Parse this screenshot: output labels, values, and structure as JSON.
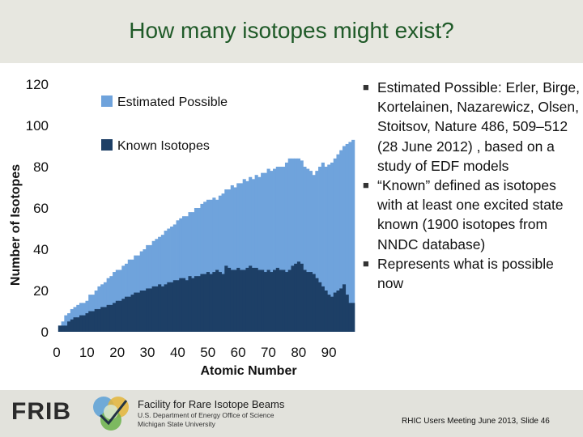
{
  "title": "How many isotopes might exist?",
  "bullets": [
    "Estimated Possible: Erler, Birge, Kortelainen, Nazarewicz, Olsen, Stoitsov, Nature 486, 509–512 (28 June 2012) , based on a study of EDF models",
    "“Known” defined as isotopes with at least one excited state known (1900 isotopes from NNDC database)",
    "Represents what is possible now"
  ],
  "footer": {
    "logo_text": "FRIB",
    "facility": "Facility for Rare Isotope Beams",
    "line2": "U.S. Department of Energy Office of Science",
    "line3": "Michigan State University",
    "slide_text": "RHIC Users Meeting June 2013, Slide 46"
  },
  "colors": {
    "estimated": "#6fa3dc",
    "known": "#1d3f66",
    "title": "#1f5a28"
  },
  "chart_data": {
    "type": "bar",
    "stacked_overlay": true,
    "xlabel": "Atomic Number",
    "ylabel": "Number of Isotopes",
    "xlim": [
      0,
      98
    ],
    "ylim": [
      0,
      120
    ],
    "xticks": [
      "0",
      "10",
      "20",
      "30",
      "40",
      "50",
      "60",
      "70",
      "80",
      "90"
    ],
    "yticks": [
      "0",
      "20",
      "40",
      "60",
      "80",
      "100",
      "120"
    ],
    "legend_position": "top-left",
    "grid": false,
    "x": [
      1,
      2,
      3,
      4,
      5,
      6,
      7,
      8,
      9,
      10,
      11,
      12,
      13,
      14,
      15,
      16,
      17,
      18,
      19,
      20,
      21,
      22,
      23,
      24,
      25,
      26,
      27,
      28,
      29,
      30,
      31,
      32,
      33,
      34,
      35,
      36,
      37,
      38,
      39,
      40,
      41,
      42,
      43,
      44,
      45,
      46,
      47,
      48,
      49,
      50,
      51,
      52,
      53,
      54,
      55,
      56,
      57,
      58,
      59,
      60,
      61,
      62,
      63,
      64,
      65,
      66,
      67,
      68,
      69,
      70,
      71,
      72,
      73,
      74,
      75,
      76,
      77,
      78,
      79,
      80,
      81,
      82,
      83,
      84,
      85,
      86,
      87,
      88,
      89,
      90,
      91,
      92,
      93,
      94,
      95,
      96,
      97,
      98
    ],
    "series": [
      {
        "name": "Estimated Possible",
        "values": [
          3,
          5,
          8,
          9,
          11,
          12,
          13,
          14,
          14,
          15,
          18,
          18,
          20,
          22,
          23,
          24,
          26,
          27,
          29,
          30,
          30,
          32,
          33,
          35,
          35,
          37,
          37,
          39,
          40,
          42,
          42,
          44,
          45,
          46,
          47,
          49,
          50,
          51,
          52,
          54,
          55,
          56,
          56,
          58,
          58,
          60,
          60,
          62,
          63,
          64,
          64,
          65,
          64,
          66,
          67,
          69,
          69,
          71,
          70,
          72,
          72,
          74,
          73,
          75,
          74,
          76,
          75,
          77,
          77,
          79,
          78,
          79,
          80,
          80,
          80,
          82,
          84,
          84,
          84,
          84,
          83,
          80,
          79,
          78,
          76,
          78,
          80,
          82,
          80,
          81,
          82,
          84,
          86,
          88,
          90,
          91,
          92,
          93
        ]
      },
      {
        "name": "Known Isotopes",
        "values": [
          3,
          3,
          3,
          5,
          6,
          7,
          7,
          8,
          8,
          9,
          10,
          10,
          11,
          11,
          12,
          12,
          13,
          13,
          14,
          15,
          15,
          16,
          17,
          17,
          18,
          19,
          19,
          20,
          20,
          21,
          21,
          22,
          22,
          23,
          22,
          23,
          24,
          24,
          25,
          25,
          26,
          26,
          25,
          27,
          26,
          27,
          27,
          28,
          28,
          29,
          28,
          29,
          30,
          29,
          28,
          32,
          31,
          30,
          30,
          31,
          30,
          30,
          31,
          32,
          31,
          31,
          30,
          30,
          29,
          30,
          29,
          30,
          31,
          30,
          30,
          29,
          30,
          32,
          33,
          34,
          33,
          30,
          29,
          29,
          28,
          26,
          24,
          22,
          20,
          18,
          17,
          19,
          20,
          21,
          23,
          18,
          14,
          14
        ]
      }
    ]
  }
}
